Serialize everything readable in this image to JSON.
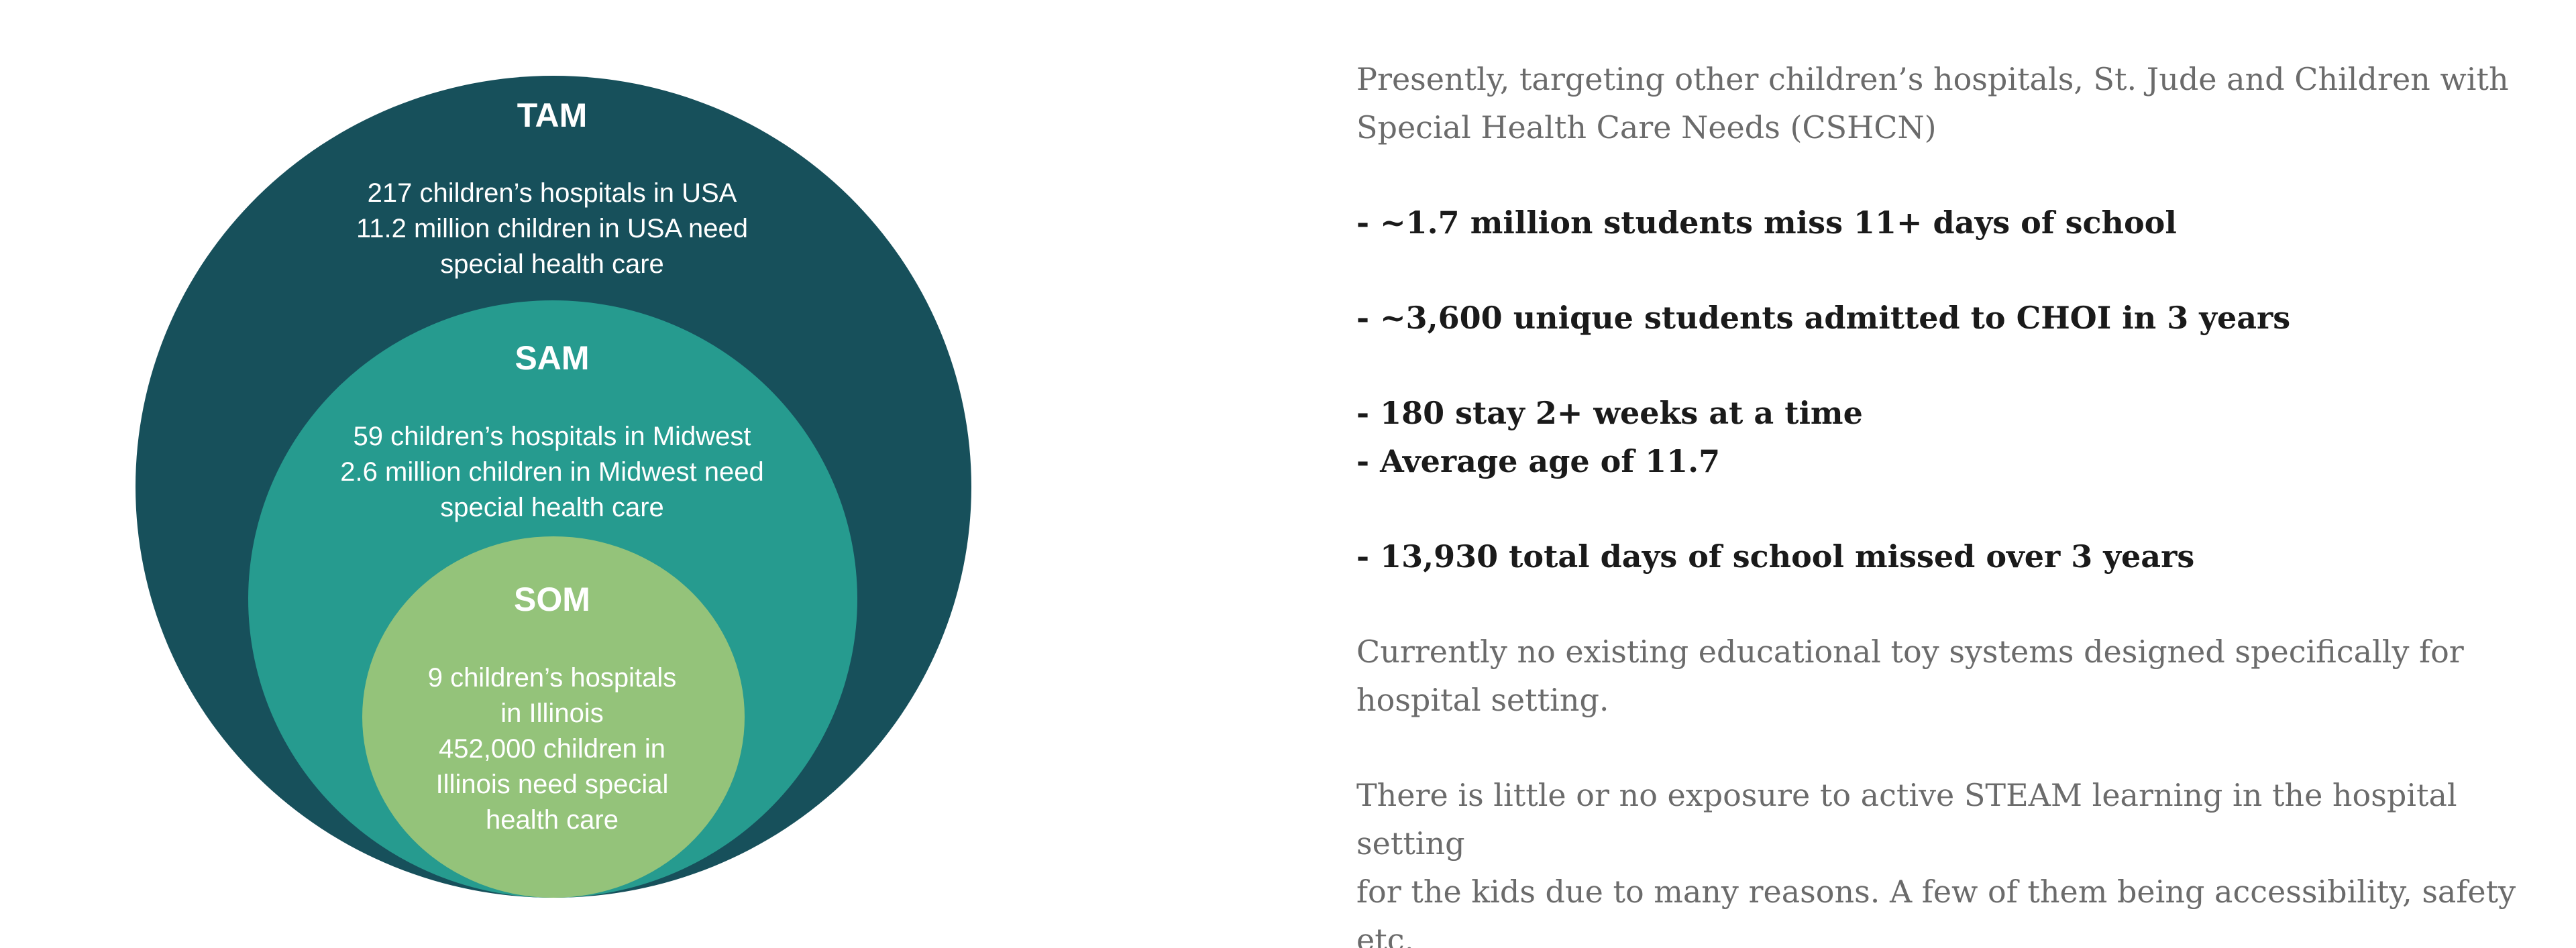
{
  "diagram": {
    "colors": {
      "tam": "#17505b",
      "sam": "#269b8f",
      "som": "#94c37a",
      "text": "#ffffff"
    },
    "tam": {
      "title": "TAM",
      "description": "217 children’s hospitals in USA\n11.2 million children in USA need\nspecial health care"
    },
    "sam": {
      "title": "SAM",
      "description": "59 children’s hospitals in Midwest\n2.6 million children in Midwest need\nspecial health care"
    },
    "som": {
      "title": "SOM",
      "description": "9 children’s hospitals\nin Illinois\n452,000 children in\nIllinois need special\nhealth care"
    }
  },
  "content": {
    "intro": "Presently, targeting other children’s hospitals, St. Jude and Children with\nSpecial Health Care Needs (CSHCN)",
    "stat_students_miss": "- ~1.7 million students miss 11+ days of school",
    "stat_unique_students": "- ~3,600 unique students admitted to CHOI in 3 years",
    "stat_stay": "  - 180 stay 2+ weeks at a time",
    "stat_age": "  - Average age of 11.7",
    "stat_days_missed": "- 13,930 total days of school missed over 3 years",
    "no_existing": "Currently no existing educational toy systems designed specifically for\nhospital setting.",
    "little_exposure": "There is little or no exposure to active STEAM learning in the hospital setting\nfor the kids due to many reasons. A few of them being accessibility, safety\netc."
  }
}
